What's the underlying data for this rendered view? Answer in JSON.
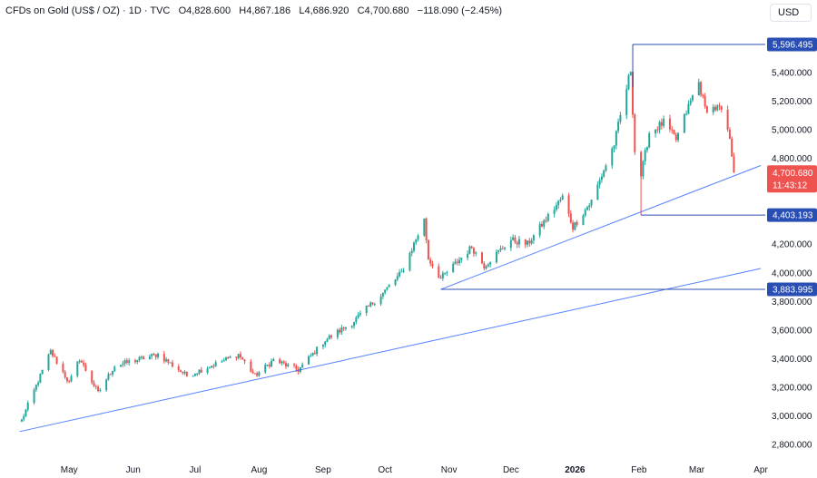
{
  "header": {
    "symbol": "CFDs on Gold (US$ / OZ)",
    "interval": "1D",
    "source": "TVC",
    "open_label": "O",
    "open": "4,828.600",
    "high_label": "H",
    "high": "4,867.186",
    "low_label": "L",
    "low": "4,686.920",
    "close_label": "C",
    "close": "4,700.680",
    "change": "−118.090 (−2.45%)",
    "currency": "USD"
  },
  "colors": {
    "up": "#26a69a",
    "down": "#ef5350",
    "line": "#2962ff",
    "price_badge": "#ef5350",
    "level_badge": "#2a4fb4"
  },
  "chart_data": {
    "type": "candlestick",
    "ylim": [
      2700,
      5700
    ],
    "x_ticks": [
      "May",
      "Jun",
      "Jul",
      "Aug",
      "Sep",
      "Oct",
      "Nov",
      "Dec",
      "2026",
      "Feb",
      "Mar",
      "Apr"
    ],
    "y_ticks": [
      "2,800.000",
      "3,000.000",
      "3,200.000",
      "3,400.000",
      "3,600.000",
      "3,800.000",
      "4,000.000",
      "4,200.000",
      "4,400.000",
      "4,600.000",
      "4,800.000",
      "5,000.000",
      "5,200.000",
      "5,400.000"
    ],
    "price_levels": [
      {
        "value": 5596.495,
        "label": "5,596.495"
      },
      {
        "value": 4403.193,
        "label": "4,403.193"
      },
      {
        "value": 3883.995,
        "label": "3,883.995"
      }
    ],
    "current_price": {
      "value": 4700.68,
      "label": "4,700.680",
      "countdown": "11:43:12"
    },
    "trendlines": [
      {
        "from": {
          "date": "2025-04-07",
          "price": 2890
        },
        "to": {
          "date": "2026-04-01",
          "price": 4030
        }
      },
      {
        "from": {
          "date": "2025-10-28",
          "price": 3883.995
        },
        "to": {
          "date": "2026-04-01",
          "price": 4750
        }
      }
    ],
    "horizontal_segments": [
      {
        "from_date": "2026-01-29",
        "to_date": "2026-04-01",
        "price": 5596.495
      },
      {
        "from_date": "2026-02-02",
        "to_date": "2026-04-01",
        "price": 4403.193
      },
      {
        "from_date": "2025-10-28",
        "to_date": "2026-04-01",
        "price": 3883.995
      }
    ],
    "anchors": [
      {
        "date": "2025-04-08",
        "price": 2970
      },
      {
        "date": "2025-04-22",
        "price": 3450
      },
      {
        "date": "2025-05-01",
        "price": 3230
      },
      {
        "date": "2025-05-06",
        "price": 3400
      },
      {
        "date": "2025-05-15",
        "price": 3160
      },
      {
        "date": "2025-05-23",
        "price": 3350
      },
      {
        "date": "2025-06-13",
        "price": 3430
      },
      {
        "date": "2025-06-27",
        "price": 3280
      },
      {
        "date": "2025-07-22",
        "price": 3430
      },
      {
        "date": "2025-07-30",
        "price": 3280
      },
      {
        "date": "2025-08-08",
        "price": 3390
      },
      {
        "date": "2025-08-20",
        "price": 3320
      },
      {
        "date": "2025-09-02",
        "price": 3530
      },
      {
        "date": "2025-09-15",
        "price": 3650
      },
      {
        "date": "2025-09-30",
        "price": 3860
      },
      {
        "date": "2025-10-09",
        "price": 4000
      },
      {
        "date": "2025-10-20",
        "price": 4370
      },
      {
        "date": "2025-10-22",
        "price": 4100
      },
      {
        "date": "2025-10-28",
        "price": 3960
      },
      {
        "date": "2025-11-12",
        "price": 4180
      },
      {
        "date": "2025-11-18",
        "price": 4050
      },
      {
        "date": "2025-12-01",
        "price": 4230
      },
      {
        "date": "2025-12-09",
        "price": 4200
      },
      {
        "date": "2025-12-26",
        "price": 4530
      },
      {
        "date": "2025-12-31",
        "price": 4320
      },
      {
        "date": "2026-01-09",
        "price": 4500
      },
      {
        "date": "2026-01-20",
        "price": 4900
      },
      {
        "date": "2026-01-28",
        "price": 5420
      },
      {
        "date": "2026-01-30",
        "price": 4850
      },
      {
        "date": "2026-02-02",
        "price": 4680
      },
      {
        "date": "2026-02-06",
        "price": 4980
      },
      {
        "date": "2026-02-13",
        "price": 5050
      },
      {
        "date": "2026-02-19",
        "price": 4930
      },
      {
        "date": "2026-02-26",
        "price": 5200
      },
      {
        "date": "2026-03-02",
        "price": 5330
      },
      {
        "date": "2026-03-05",
        "price": 5150
      },
      {
        "date": "2026-03-12",
        "price": 5150
      },
      {
        "date": "2026-03-16",
        "price": 5000
      },
      {
        "date": "2026-03-18",
        "price": 4830
      },
      {
        "date": "2026-03-19",
        "price": 4700.68
      }
    ]
  }
}
